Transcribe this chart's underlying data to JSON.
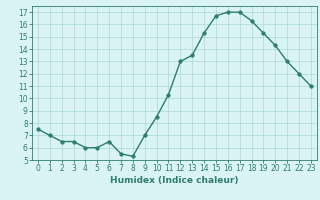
{
  "x": [
    0,
    1,
    2,
    3,
    4,
    5,
    6,
    7,
    8,
    9,
    10,
    11,
    12,
    13,
    14,
    15,
    16,
    17,
    18,
    19,
    20,
    21,
    22,
    23
  ],
  "y": [
    7.5,
    7.0,
    6.5,
    6.5,
    6.0,
    6.0,
    6.5,
    5.5,
    5.3,
    7.0,
    8.5,
    10.3,
    13.0,
    13.5,
    15.3,
    16.7,
    17.0,
    17.0,
    16.3,
    15.3,
    14.3,
    13.0,
    12.0,
    11.0
  ],
  "xlabel": "Humidex (Indice chaleur)",
  "line_color": "#2e7d6e",
  "marker": "o",
  "marker_size": 2.5,
  "line_width": 1.0,
  "bg_color": "#daf4f4",
  "grid_color": "#aad8d8",
  "ylim": [
    5,
    17.5
  ],
  "xlim": [
    -0.5,
    23.5
  ],
  "yticks": [
    5,
    6,
    7,
    8,
    9,
    10,
    11,
    12,
    13,
    14,
    15,
    16,
    17
  ],
  "xticks": [
    0,
    1,
    2,
    3,
    4,
    5,
    6,
    7,
    8,
    9,
    10,
    11,
    12,
    13,
    14,
    15,
    16,
    17,
    18,
    19,
    20,
    21,
    22,
    23
  ],
  "tick_fontsize": 5.5,
  "xlabel_fontsize": 6.5
}
